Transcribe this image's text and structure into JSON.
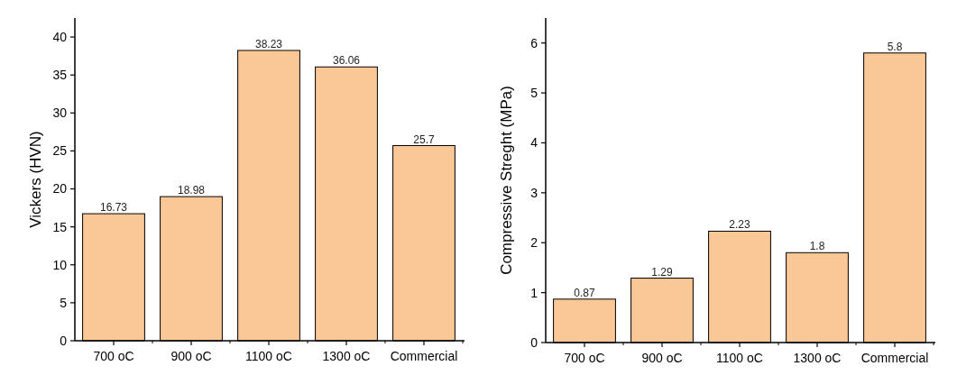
{
  "chart_data": [
    {
      "type": "bar",
      "ylabel": "Vickers (HVN)",
      "categories": [
        "700 oC",
        "900 oC",
        "1100 oC",
        "1300 oC",
        "Commercial"
      ],
      "values": [
        16.73,
        18.98,
        38.23,
        36.06,
        25.7
      ],
      "color": "#fac897",
      "ylim": [
        0,
        42.5
      ],
      "yticks": [
        0,
        5,
        10,
        15,
        20,
        25,
        30,
        35,
        40
      ],
      "data_labels": true,
      "grid": false
    },
    {
      "type": "bar",
      "ylabel": "Compressive Streght (MPa)",
      "categories": [
        "700 oC",
        "900 oC",
        "1100 oC",
        "1300 oC",
        "Commercial"
      ],
      "values": [
        0.87,
        1.29,
        2.23,
        1.8,
        5.8
      ],
      "color": "#fac897",
      "ylim": [
        0,
        6.5
      ],
      "yticks": [
        0,
        1,
        2,
        3,
        4,
        5,
        6
      ],
      "data_labels": true,
      "grid": false
    }
  ]
}
